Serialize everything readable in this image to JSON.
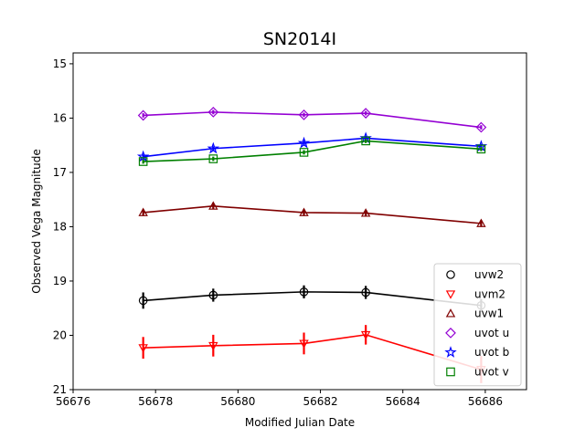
{
  "chart_data": {
    "type": "line",
    "title": "SN2014I",
    "xlabel": "Modified Julian Date",
    "ylabel": "Observed Vega Magnitude",
    "xlim": [
      56676,
      56687
    ],
    "ylim": [
      21,
      14.8
    ],
    "y_inverted": true,
    "xticks": [
      56676,
      56678,
      56680,
      56682,
      56684,
      56686
    ],
    "yticks": [
      15,
      16,
      17,
      18,
      19,
      20,
      21
    ],
    "grid": false,
    "legend": "lower-right",
    "series": [
      {
        "name": "uvw2",
        "color": "#000000",
        "marker": "circle",
        "x": [
          56677.7,
          56679.4,
          56681.6,
          56683.1,
          56685.9
        ],
        "y": [
          19.36,
          19.26,
          19.2,
          19.21,
          19.45
        ],
        "err": [
          0.15,
          0.12,
          0.12,
          0.12,
          0.12
        ]
      },
      {
        "name": "uvm2",
        "color": "#ff0000",
        "marker": "triangle-down",
        "x": [
          56677.7,
          56679.4,
          56681.6,
          56683.1,
          56685.9
        ],
        "y": [
          20.23,
          20.19,
          20.15,
          19.99,
          20.63
        ],
        "err": [
          0.2,
          0.2,
          0.2,
          0.18,
          0.25
        ]
      },
      {
        "name": "uvw1",
        "color": "#800000",
        "marker": "triangle-up",
        "x": [
          56677.7,
          56679.4,
          56681.6,
          56683.1,
          56685.9
        ],
        "y": [
          17.74,
          17.62,
          17.74,
          17.75,
          17.94
        ],
        "err": [
          0.06,
          0.06,
          0.06,
          0.06,
          0.06
        ]
      },
      {
        "name": "uvot u",
        "color": "#9400d3",
        "marker": "diamond",
        "x": [
          56677.7,
          56679.4,
          56681.6,
          56683.1,
          56685.9
        ],
        "y": [
          15.95,
          15.89,
          15.94,
          15.91,
          16.17
        ],
        "err": [
          0.04,
          0.04,
          0.04,
          0.04,
          0.04
        ]
      },
      {
        "name": "uvot b",
        "color": "#0000ff",
        "marker": "star",
        "x": [
          56677.7,
          56679.4,
          56681.6,
          56683.1,
          56685.9
        ],
        "y": [
          16.71,
          16.56,
          16.46,
          16.37,
          16.52
        ],
        "err": [
          0.04,
          0.04,
          0.04,
          0.04,
          0.04
        ]
      },
      {
        "name": "uvot v",
        "color": "#008000",
        "marker": "square",
        "x": [
          56677.7,
          56679.4,
          56681.6,
          56683.1,
          56685.9
        ],
        "y": [
          16.8,
          16.75,
          16.63,
          16.42,
          16.57
        ],
        "err": [
          0.04,
          0.04,
          0.04,
          0.04,
          0.04
        ]
      }
    ]
  }
}
